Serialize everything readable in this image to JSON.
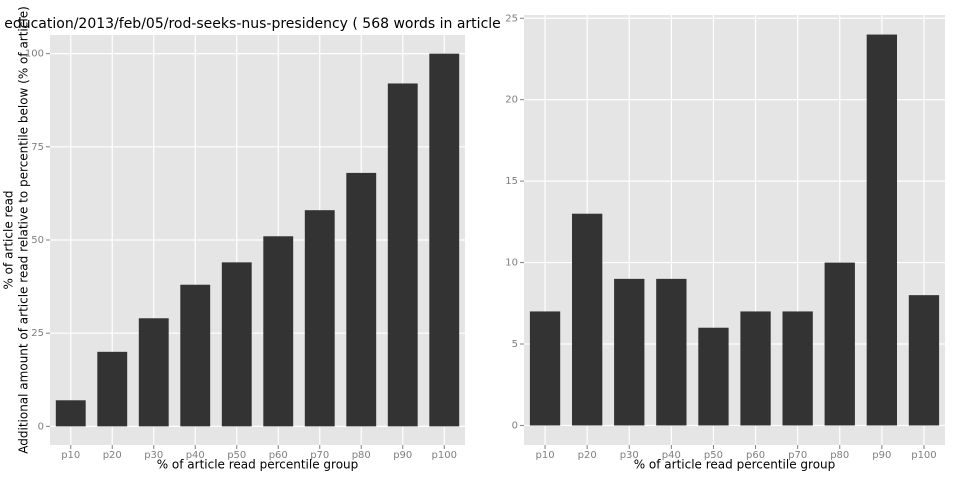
{
  "chart_data": [
    {
      "type": "bar",
      "title": "education/2013/feb/05/rod-seeks-nus-presidency ( 568 words in article",
      "x_label": "% of article read percentile group",
      "y_label": "% of article read",
      "categories": [
        "p10",
        "p20",
        "p30",
        "p40",
        "p50",
        "p60",
        "p70",
        "p80",
        "p90",
        "p100"
      ],
      "values": [
        7,
        20,
        29,
        38,
        44,
        51,
        58,
        68,
        92,
        100
      ],
      "color": "#333333",
      "ylim": [
        -5,
        105
      ],
      "yticks": [
        0,
        25,
        50,
        75,
        100
      ],
      "grid": true
    },
    {
      "type": "bar",
      "x_label": "% of article read percentile group",
      "y_label": "Additional amount of article read relative to percentile below (% of article)",
      "categories": [
        "p10",
        "p20",
        "p30",
        "p40",
        "p50",
        "p60",
        "p70",
        "p80",
        "p90",
        "p100"
      ],
      "values": [
        7,
        13,
        9,
        9,
        6,
        7,
        7,
        10,
        24,
        8
      ],
      "color": "#333333",
      "ylim": [
        -1.2,
        25.2
      ],
      "yticks": [
        0,
        5,
        10,
        15,
        20,
        25
      ],
      "grid": true
    }
  ]
}
